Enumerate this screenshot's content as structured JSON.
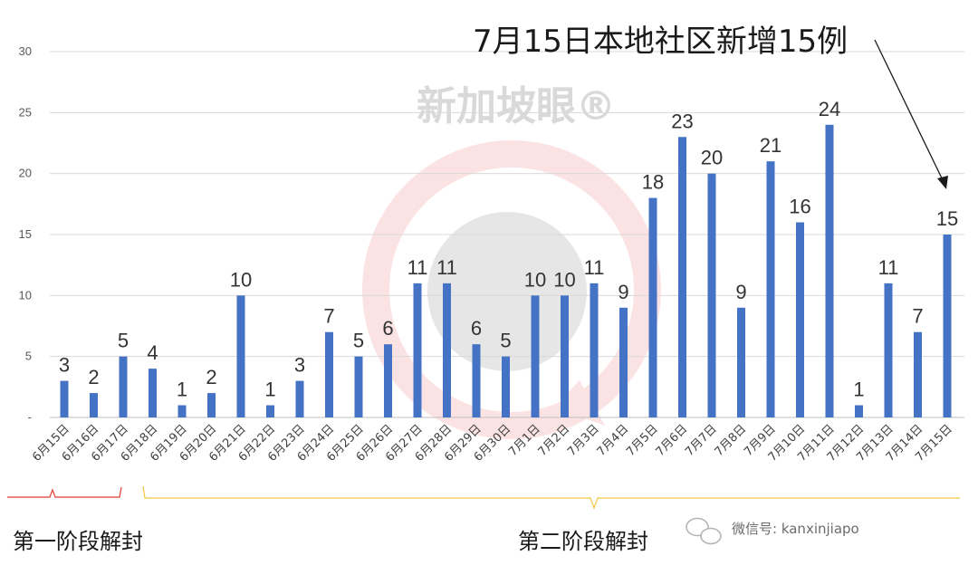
{
  "chart_data": {
    "type": "bar",
    "title": "7月15日本地社区新增15例",
    "xlabel": "",
    "ylabel": "",
    "ylim": [
      0,
      30
    ],
    "yticks": [
      "-",
      "5",
      "10",
      "15",
      "20",
      "25",
      "30"
    ],
    "grid": true,
    "bar_color": "#4472C4",
    "categories": [
      "6月15日",
      "6月16日",
      "6月17日",
      "6月18日",
      "6月19日",
      "6月20日",
      "6月21日",
      "6月22日",
      "6月23日",
      "6月24日",
      "6月25日",
      "6月26日",
      "6月27日",
      "6月28日",
      "6月29日",
      "6月30日",
      "7月1日",
      "7月2日",
      "7月3日",
      "7月4日",
      "7月5日",
      "7月6日",
      "7月7日",
      "7月8日",
      "7月9日",
      "7月10日",
      "7月11日",
      "7月12日",
      "7月13日",
      "7月14日",
      "7月15日"
    ],
    "values": [
      3,
      2,
      5,
      4,
      1,
      2,
      10,
      1,
      3,
      7,
      5,
      6,
      11,
      11,
      6,
      5,
      10,
      10,
      11,
      9,
      18,
      23,
      20,
      9,
      21,
      16,
      24,
      1,
      11,
      7,
      15
    ]
  },
  "phases": {
    "phase1_label": "第一阶段解封",
    "phase1_color": "#e03c31",
    "phase2_label": "第二阶段解封",
    "phase2_color": "#f2c744"
  },
  "watermark": {
    "logo_text": "新加坡眼®",
    "account_text": "微信号: kanxinjiapo"
  }
}
